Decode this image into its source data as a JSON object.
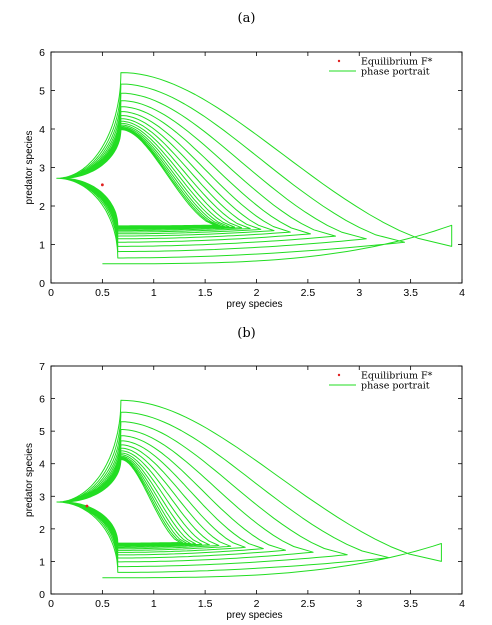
{
  "chart_data": [
    {
      "type": "line",
      "panel_label": "(a)",
      "xlabel": "prey species",
      "ylabel": "predator species",
      "xlim": [
        0,
        4
      ],
      "ylim": [
        0,
        6
      ],
      "xticks": [
        "0",
        "0.5",
        "1",
        "1.5",
        "2",
        "2.5",
        "3",
        "3.5",
        "4"
      ],
      "yticks": [
        "0",
        "1",
        "2",
        "3",
        "4",
        "5",
        "6"
      ],
      "legend": {
        "position": "top-right",
        "equilibrium_label": "Equilibrium F*",
        "portrait_label": "phase portrait"
      },
      "colors": {
        "portrait": "#22dd22",
        "equilibrium": "#e02020"
      },
      "equilibrium": {
        "x": 0.5,
        "y": 2.55
      },
      "trajectory": {
        "start": [
          0.5,
          0.5
        ],
        "rightmost_start": [
          3.9,
          1.5
        ],
        "turns": 16,
        "first_loop": {
          "xmin": 0.05,
          "xmax": 3.9,
          "ymin": 0.5,
          "ymax": 5.55,
          "ylow_right": 0.95
        },
        "limit_cycle": {
          "xmin": 0.11,
          "xmax": 1.5,
          "ymin": 1.52,
          "ymax": 3.92
        }
      }
    },
    {
      "type": "line",
      "panel_label": "(b)",
      "xlabel": "prey species",
      "ylabel": "predator species",
      "xlim": [
        0,
        4
      ],
      "ylim": [
        0,
        7
      ],
      "xticks": [
        "0",
        "0.5",
        "1",
        "1.5",
        "2",
        "2.5",
        "3",
        "3.5",
        "4"
      ],
      "yticks": [
        "0",
        "1",
        "2",
        "3",
        "4",
        "5",
        "6",
        "7"
      ],
      "legend": {
        "position": "top-right",
        "equilibrium_label": "Equilibrium F*",
        "portrait_label": "phase portrait"
      },
      "colors": {
        "portrait": "#22dd22",
        "equilibrium": "#e02020"
      },
      "equilibrium": {
        "x": 0.35,
        "y": 2.7
      },
      "trajectory": {
        "start": [
          0.5,
          0.5
        ],
        "rightmost_start": [
          3.8,
          1.55
        ],
        "turns": 16,
        "first_loop": {
          "xmin": 0.05,
          "xmax": 3.8,
          "ymin": 0.5,
          "ymax": 6.05,
          "ylow_right": 1.0
        },
        "limit_cycle": {
          "xmin": 0.12,
          "xmax": 1.15,
          "ymin": 1.6,
          "ymax": 4.05
        }
      }
    }
  ]
}
